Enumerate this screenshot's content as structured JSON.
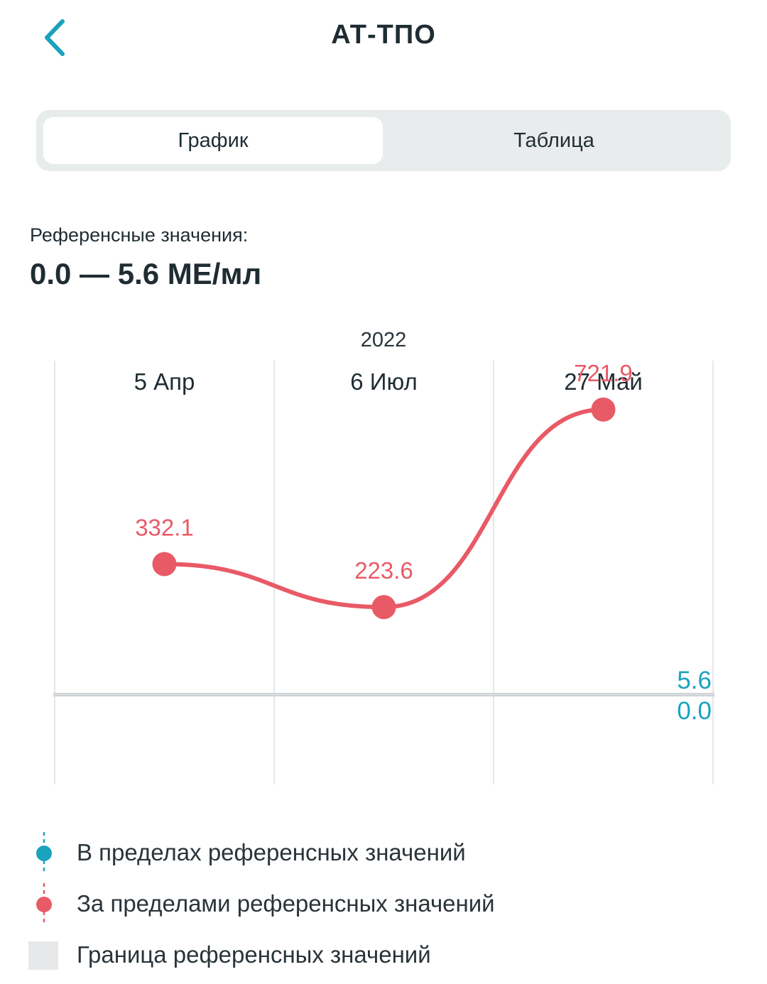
{
  "header": {
    "title": "АТ-ТПО",
    "back_icon": "chevron-left-icon"
  },
  "tabs": [
    {
      "label": "График",
      "active": true
    },
    {
      "label": "Таблица",
      "active": false
    }
  ],
  "reference": {
    "label": "Референсные значения:",
    "value": "0.0 — 5.6 МЕ/мл"
  },
  "chart_data": {
    "type": "line",
    "year_label": "2022",
    "categories": [
      "5 Апр",
      "6 Июл",
      "27 Май"
    ],
    "series": [
      {
        "values": [
          332.1,
          223.6,
          721.9
        ],
        "labels": [
          "332.1",
          "223.6",
          "721.9"
        ],
        "color": "#e85a66"
      }
    ],
    "reference_range": {
      "low": 0.0,
      "high": 5.6,
      "low_label": "0.0",
      "high_label": "5.6",
      "color": "#1aa3bd"
    },
    "grid": true,
    "legend_position": "bottom"
  },
  "legend": [
    {
      "label": "В пределах референсных значений",
      "icon": "in-range-dot-icon",
      "color": "#1aa3bd"
    },
    {
      "label": "За пределами референсных значений",
      "icon": "out-of-range-dot-icon",
      "color": "#e85a66"
    },
    {
      "label": "Граница референсных значений",
      "icon": "reference-band-icon",
      "color": "#e6e8ea"
    }
  ],
  "colors": {
    "accent": "#1aa3bd",
    "out_of_range": "#e85a66",
    "text": "#1f2d33",
    "segment_bg": "#e9ecec"
  }
}
